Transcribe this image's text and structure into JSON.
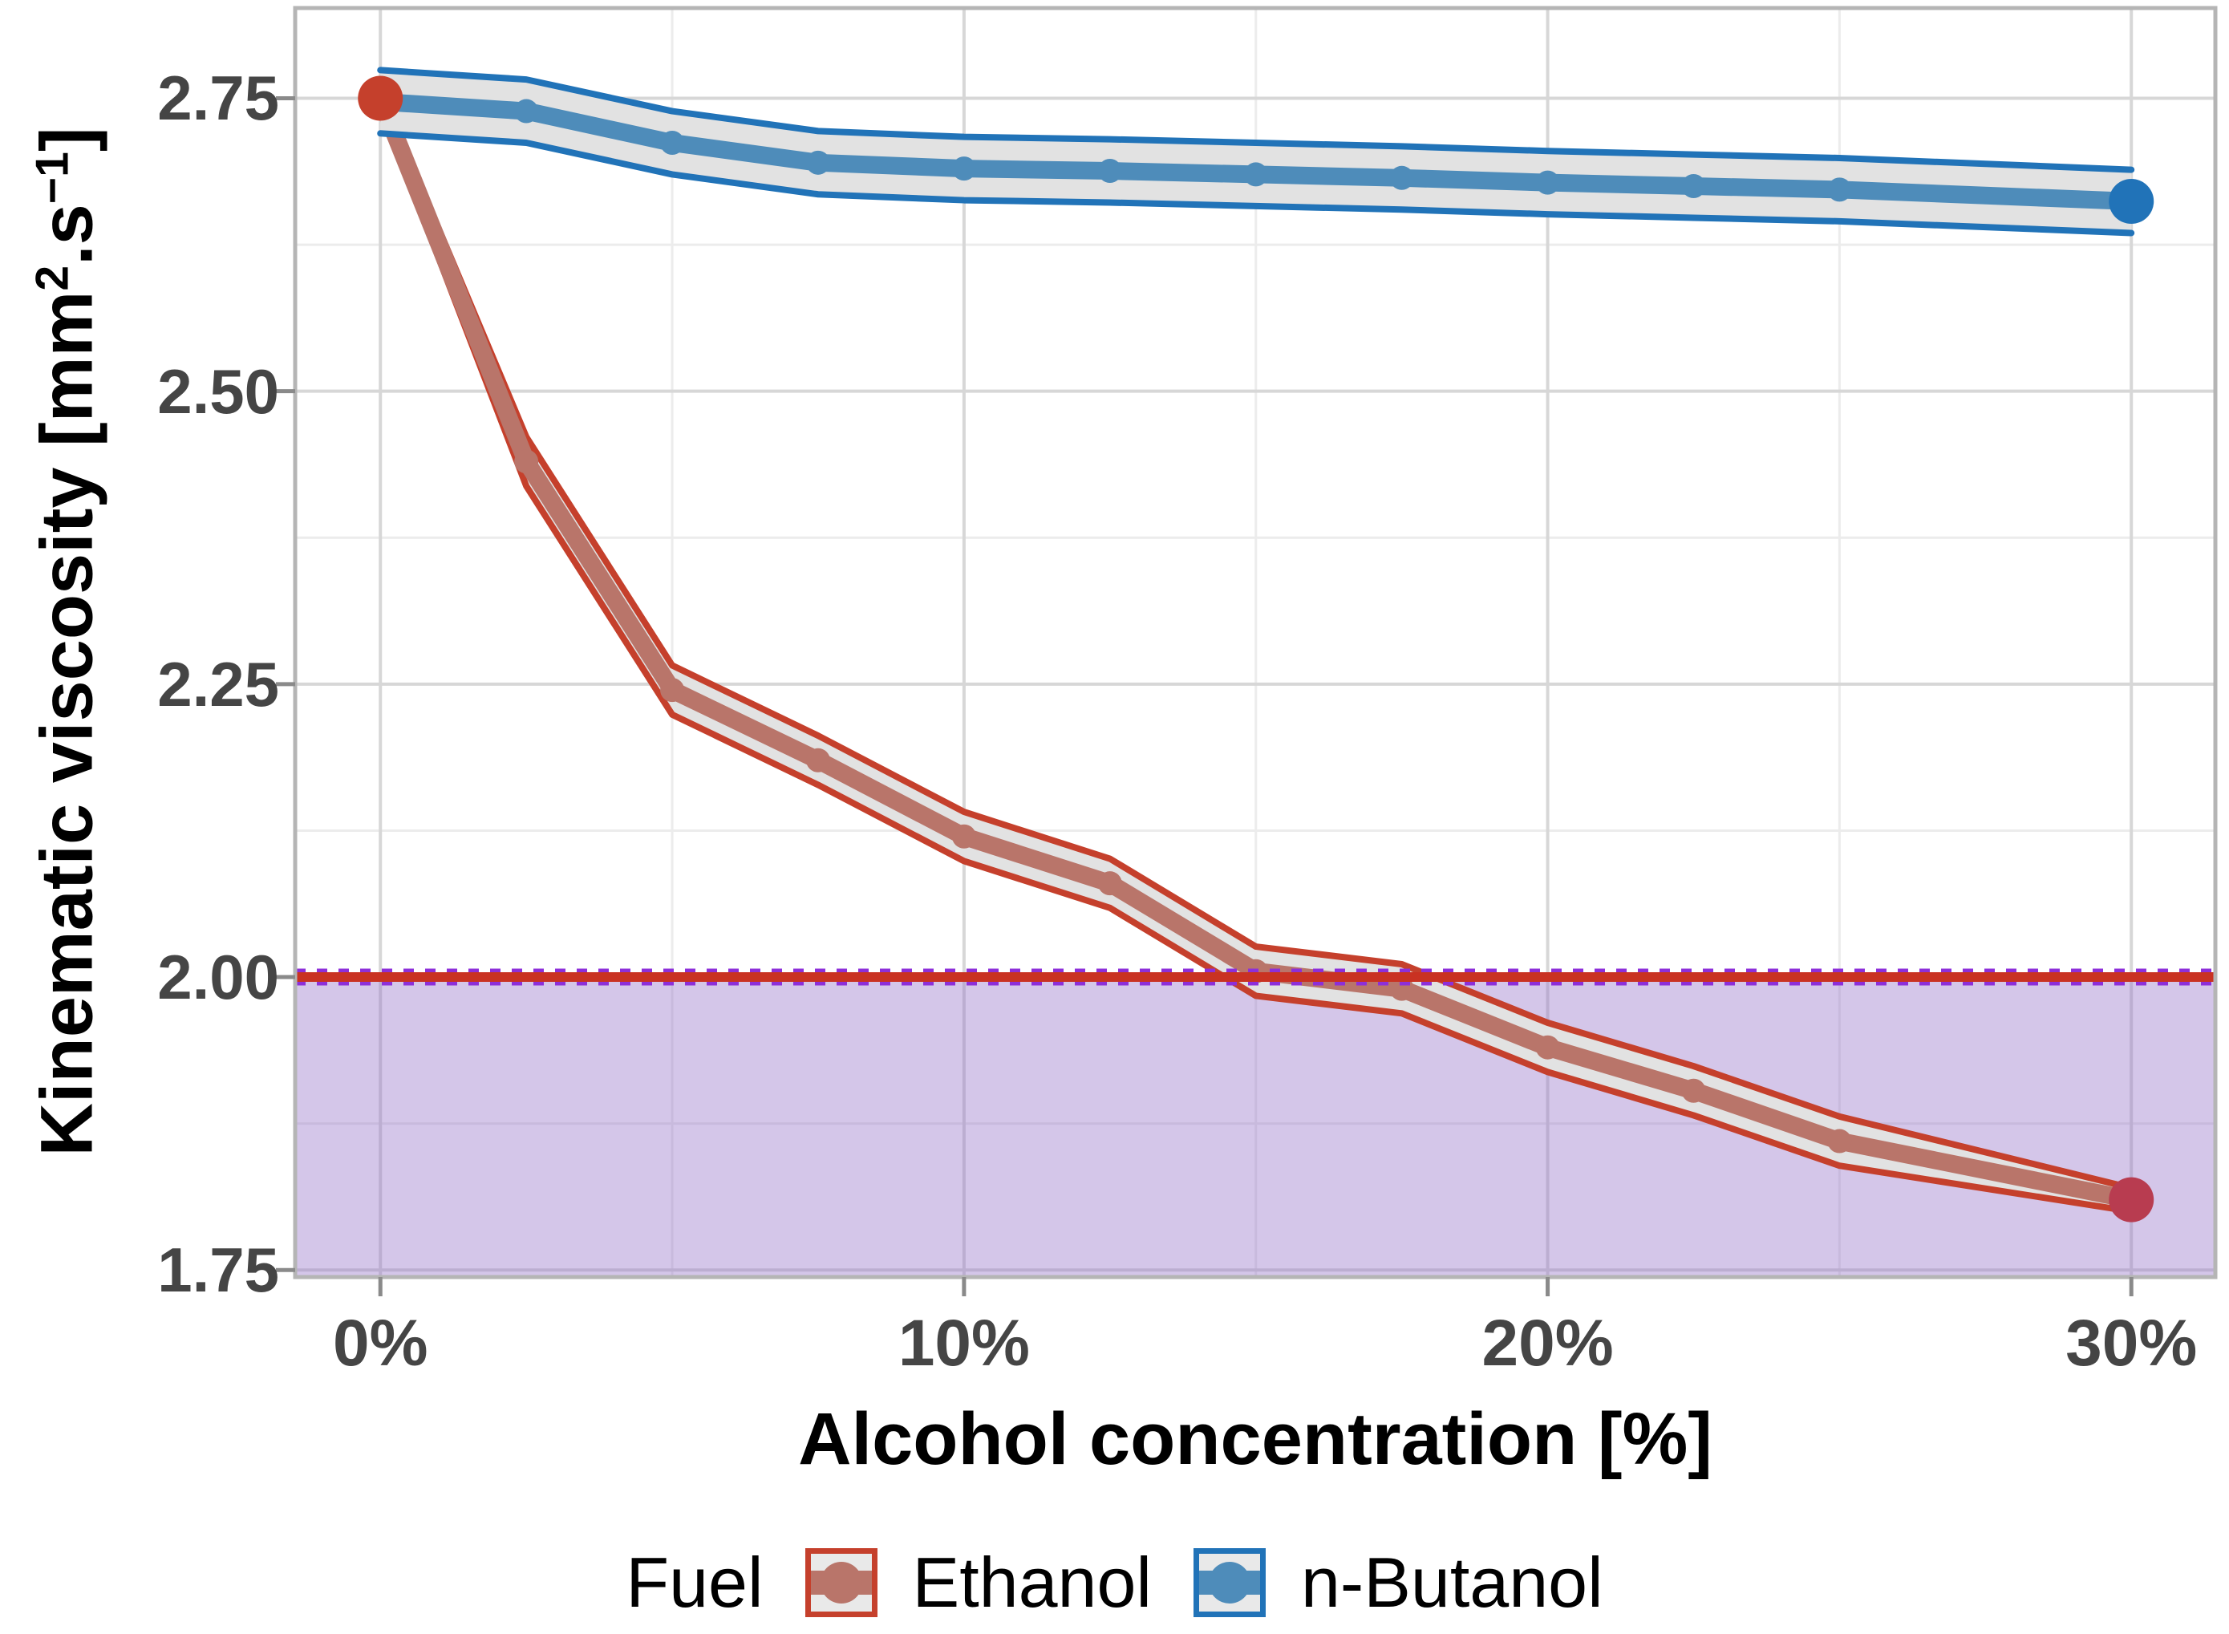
{
  "chart_data": {
    "type": "line",
    "title": "",
    "xlabel": "Alcohol concentration [%]",
    "ylabel_parts": {
      "prefix": "Kinematic viscosity [mm",
      "sup1": "2",
      "mid": ".s",
      "sup2": "−1",
      "suffix": "]"
    },
    "xlim": [
      -1.46,
      31.44
    ],
    "ylim": [
      1.744,
      2.827
    ],
    "x_tick_labels": [
      "0%",
      "10%",
      "20%",
      "30%"
    ],
    "x_tick_values": [
      0,
      10,
      20,
      30
    ],
    "y_tick_labels": [
      "2.75",
      "2.50",
      "2.25",
      "2.00",
      "1.75"
    ],
    "y_tick_values": [
      2.75,
      2.5,
      2.25,
      2.0,
      1.75
    ],
    "x_minor_gridlines": [
      5,
      15,
      25
    ],
    "y_minor_gridlines": [
      2.625,
      2.375,
      2.125,
      1.875
    ],
    "grid": "on",
    "legend_position": "bottom",
    "x": [
      0,
      2.5,
      5,
      7.5,
      10,
      12.5,
      15,
      17.5,
      20,
      22.5,
      25,
      30
    ],
    "series": [
      {
        "name": "Ethanol",
        "values": [
          2.75,
          2.44,
          2.245,
          2.185,
          2.12,
          2.08,
          2.005,
          1.99,
          1.94,
          1.903,
          1.86,
          1.81
        ],
        "band_half_width": 0.021,
        "band_half_width_start": 0.007,
        "band_half_width_end": 0.01,
        "edge_color": "#c5402c",
        "line_color": "#b9756a",
        "ribbon_fill": "#e2e2e2",
        "start_dot_color": "#c5402c",
        "end_dot_color": "#b83c50"
      },
      {
        "name": "n-Butanol",
        "values": [
          2.747,
          2.739,
          2.712,
          2.695,
          2.69,
          2.688,
          2.685,
          2.682,
          2.678,
          2.675,
          2.672,
          2.662
        ],
        "band_half_width": 0.027,
        "band_half_width_start": 0.027,
        "band_half_width_end": 0.027,
        "edge_color": "#2173b8",
        "line_color": "#4e8cba",
        "ribbon_fill": "#e2e2e2",
        "start_dot_color": null,
        "end_dot_color": "#2173b8"
      }
    ],
    "threshold": {
      "y": 2.0,
      "solid_line_color": "#c93222",
      "dotted_line_color": "#8d2fd9",
      "region_fill": "rgba(147,112,199,0.40)",
      "region_edge": "rgba(200,70,60,0.40)"
    },
    "colors": {
      "major_grid": "#d7d7d7",
      "minor_grid": "#ececec",
      "panel_border": "#b5b5b5",
      "tick_mark": "#8a8a8a",
      "tick_text": "#454545"
    }
  },
  "legend": {
    "title": "Fuel",
    "items": [
      {
        "label": "Ethanol"
      },
      {
        "label": "n-Butanol"
      }
    ]
  }
}
